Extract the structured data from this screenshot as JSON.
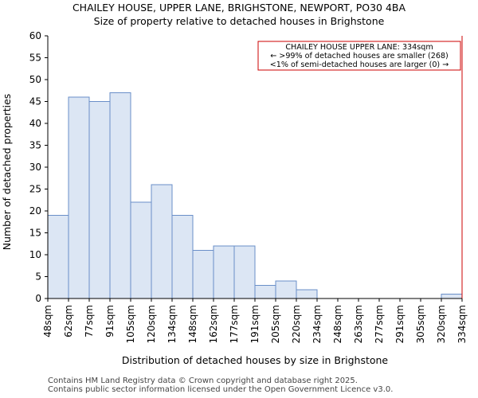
{
  "chart_data": {
    "type": "bar",
    "title": "CHAILEY HOUSE, UPPER LANE, BRIGHSTONE, NEWPORT, PO30 4BA",
    "subtitle": "Size of property relative to detached houses in Brighstone",
    "xlabel": "Distribution of detached houses by size in Brighstone",
    "ylabel": "Number of detached properties",
    "ylim": [
      0,
      60
    ],
    "yticks": [
      0,
      5,
      10,
      15,
      20,
      25,
      30,
      35,
      40,
      45,
      50,
      55,
      60
    ],
    "grid": false,
    "bin_edges": [
      "48sqm",
      "62sqm",
      "77sqm",
      "91sqm",
      "105sqm",
      "120sqm",
      "134sqm",
      "148sqm",
      "162sqm",
      "177sqm",
      "191sqm",
      "205sqm",
      "220sqm",
      "234sqm",
      "248sqm",
      "263sqm",
      "277sqm",
      "291sqm",
      "305sqm",
      "320sqm",
      "334sqm"
    ],
    "values": [
      19,
      46,
      45,
      47,
      22,
      26,
      19,
      11,
      12,
      12,
      3,
      4,
      2,
      0,
      0,
      0,
      0,
      0,
      0,
      1
    ],
    "marker": {
      "at": "334sqm",
      "color": "#cc0000"
    },
    "annotation": {
      "lines": [
        "CHAILEY HOUSE UPPER LANE: 334sqm",
        "← >99% of detached houses are smaller (268)",
        "<1% of semi-detached houses are larger (0) →"
      ],
      "placement": "top-right"
    },
    "colors": {
      "bar_fill": "#dce6f4",
      "bar_edge": "#6a8fc8",
      "marker": "#cc0000"
    }
  },
  "footer": {
    "line1": "Contains HM Land Registry data © Crown copyright and database right 2025.",
    "line2": "Contains public sector information licensed under the Open Government Licence v3.0."
  }
}
